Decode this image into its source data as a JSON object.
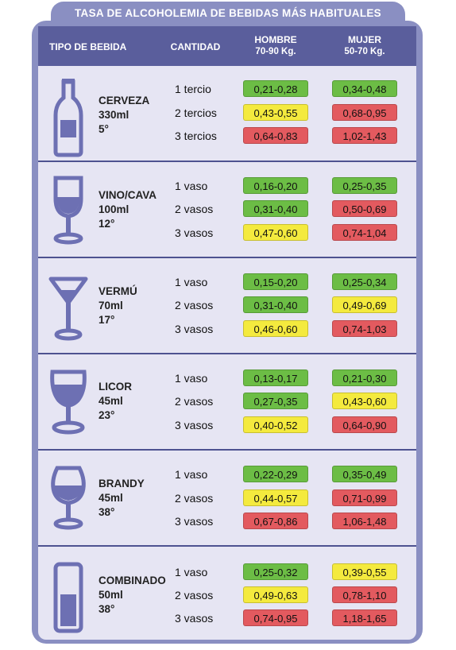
{
  "title": "TASA DE ALCOHOLEMIA DE BEBIDAS MÁS HABITUALES",
  "headers": {
    "tipo": "TIPO DE BEBIDA",
    "cantidad": "CANTIDAD",
    "hombre": "HOMBRE",
    "hombre_peso": "70-90 Kg.",
    "mujer": "MUJER",
    "mujer_peso": "50-70 Kg."
  },
  "colors": {
    "green": "#6cbd45",
    "yellow": "#f4ea3e",
    "red": "#e35a5f",
    "frame": "#8a8fc2",
    "header": "#5a5e9c"
  },
  "drinks": [
    {
      "name": "CERVEZA",
      "volume": "330ml",
      "degrees": "5°",
      "icon": "beer-bottle-icon",
      "rows": [
        {
          "qty": "1 tercio",
          "man": "0,21-0,28",
          "man_level": "green",
          "woman": "0,34-0,48",
          "woman_level": "green"
        },
        {
          "qty": "2 tercios",
          "man": "0,43-0,55",
          "man_level": "yellow",
          "woman": "0,68-0,95",
          "woman_level": "red"
        },
        {
          "qty": "3 tercios",
          "man": "0,64-0,83",
          "man_level": "red",
          "woman": "1,02-1,43",
          "woman_level": "red"
        }
      ]
    },
    {
      "name": "VINO/CAVA",
      "volume": "100ml",
      "degrees": "12°",
      "icon": "wine-glass-icon",
      "rows": [
        {
          "qty": "1 vaso",
          "man": "0,16-0,20",
          "man_level": "green",
          "woman": "0,25-0,35",
          "woman_level": "green"
        },
        {
          "qty": "2 vasos",
          "man": "0,31-0,40",
          "man_level": "green",
          "woman": "0,50-0,69",
          "woman_level": "red"
        },
        {
          "qty": "3 vasos",
          "man": "0,47-0,60",
          "man_level": "yellow",
          "woman": "0,74-1,04",
          "woman_level": "red"
        }
      ]
    },
    {
      "name": "VERMÚ",
      "volume": "70ml",
      "degrees": "17°",
      "icon": "martini-glass-icon",
      "rows": [
        {
          "qty": "1 vaso",
          "man": "0,15-0,20",
          "man_level": "green",
          "woman": "0,25-0,34",
          "woman_level": "green"
        },
        {
          "qty": "2 vasos",
          "man": "0,31-0,40",
          "man_level": "green",
          "woman": "0,49-0,69",
          "woman_level": "yellow"
        },
        {
          "qty": "3 vasos",
          "man": "0,46-0,60",
          "man_level": "yellow",
          "woman": "0,74-1,03",
          "woman_level": "red"
        }
      ]
    },
    {
      "name": "LICOR",
      "volume": "45ml",
      "degrees": "23°",
      "icon": "liqueur-glass-icon",
      "rows": [
        {
          "qty": "1 vaso",
          "man": "0,13-0,17",
          "man_level": "green",
          "woman": "0,21-0,30",
          "woman_level": "green"
        },
        {
          "qty": "2 vasos",
          "man": "0,27-0,35",
          "man_level": "green",
          "woman": "0,43-0,60",
          "woman_level": "yellow"
        },
        {
          "qty": "3 vasos",
          "man": "0,40-0,52",
          "man_level": "yellow",
          "woman": "0,64-0,90",
          "woman_level": "red"
        }
      ]
    },
    {
      "name": "BRANDY",
      "volume": "45ml",
      "degrees": "38°",
      "icon": "brandy-snifter-icon",
      "rows": [
        {
          "qty": "1 vaso",
          "man": "0,22-0,29",
          "man_level": "green",
          "woman": "0,35-0,49",
          "woman_level": "green"
        },
        {
          "qty": "2 vasos",
          "man": "0,44-0,57",
          "man_level": "yellow",
          "woman": "0,71-0,99",
          "woman_level": "red"
        },
        {
          "qty": "3 vasos",
          "man": "0,67-0,86",
          "man_level": "red",
          "woman": "1,06-1,48",
          "woman_level": "red"
        }
      ]
    },
    {
      "name": "COMBINADO",
      "volume": "50ml",
      "degrees": "38°",
      "icon": "highball-glass-icon",
      "rows": [
        {
          "qty": "1 vaso",
          "man": "0,25-0,32",
          "man_level": "green",
          "woman": "0,39-0,55",
          "woman_level": "yellow"
        },
        {
          "qty": "2 vasos",
          "man": "0,49-0,63",
          "man_level": "yellow",
          "woman": "0,78-1,10",
          "woman_level": "red"
        },
        {
          "qty": "3 vasos",
          "man": "0,74-0,95",
          "man_level": "red",
          "woman": "1,18-1,65",
          "woman_level": "red"
        }
      ]
    }
  ]
}
